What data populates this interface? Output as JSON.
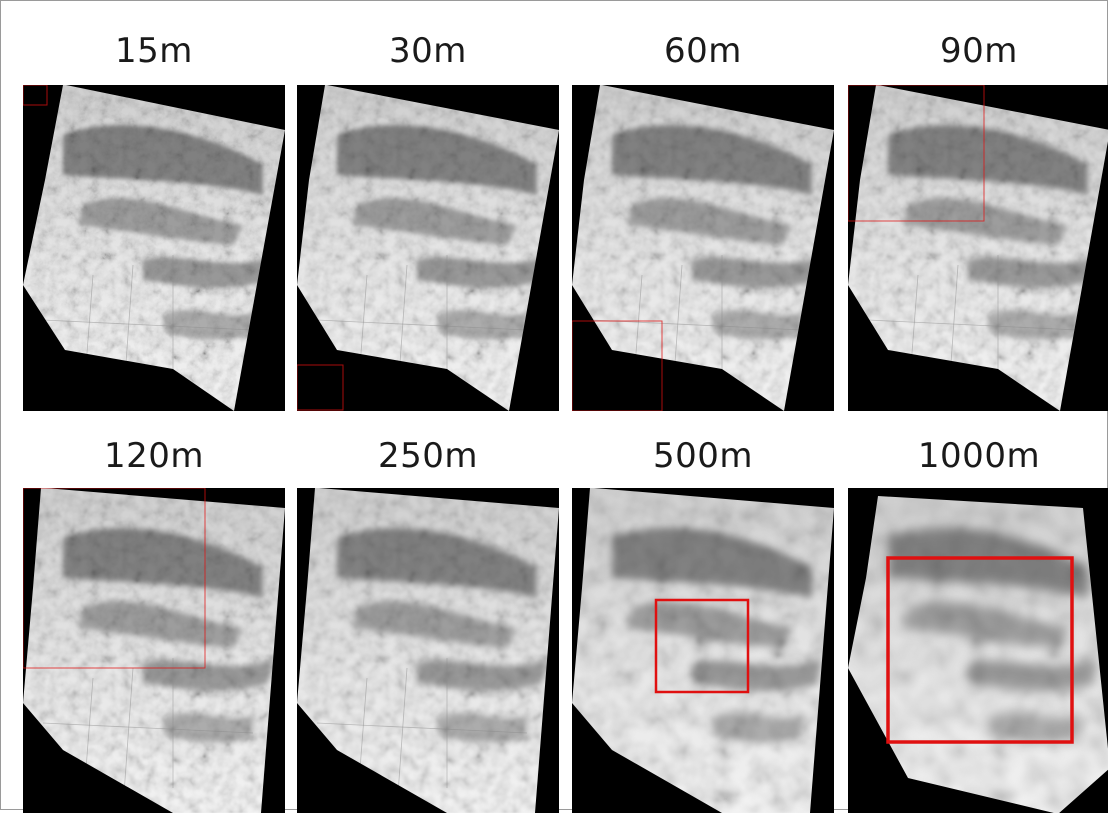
{
  "panels": [
    {
      "label": "15m"
    },
    {
      "label": "30m"
    },
    {
      "label": "60m"
    },
    {
      "label": "90m"
    },
    {
      "label": "120m"
    },
    {
      "label": "250m"
    },
    {
      "label": "500m"
    },
    {
      "label": "1000m"
    }
  ],
  "colors": {
    "background": "#ffffff",
    "panel_background": "#000000",
    "highlight_box": "#e01010"
  }
}
